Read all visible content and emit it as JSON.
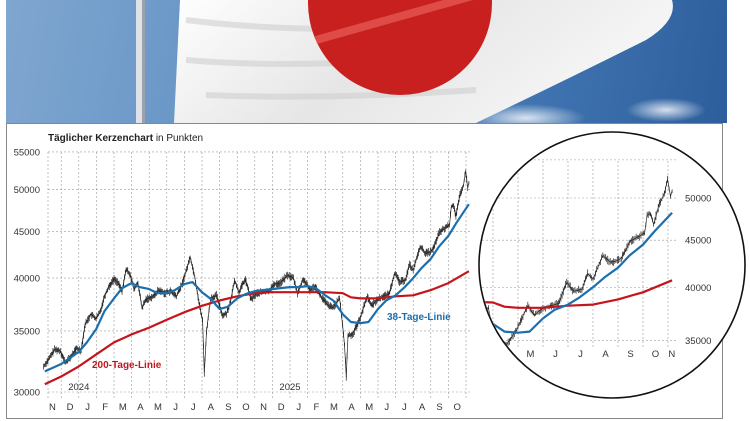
{
  "header_image": {
    "subject": "japan-flag-photo",
    "colors": {
      "sky": "#5f8fc4",
      "flag_white": "#f2f2f2",
      "flag_red": "#c8201e"
    }
  },
  "colors": {
    "candles": "#222222",
    "ma38": "#1b6fae",
    "ma200": "#c4151c",
    "grid": "#9a9a9a",
    "frame": "#888888"
  },
  "chart_data": [
    {
      "type": "line",
      "title_bold": "Täglicher Kerzenchart",
      "title_rest": " in Punkten",
      "y_scale": "log",
      "ylim": [
        30000,
        55000
      ],
      "y_ticks": [
        "55000",
        "50000",
        "45000",
        "40000",
        "35000",
        "30000"
      ],
      "x_range": [
        "2023-11-01",
        "2025-11-06"
      ],
      "x_ticks": [
        "N",
        "D",
        "J",
        "F",
        "M",
        "A",
        "M",
        "J",
        "J",
        "A",
        "S",
        "O",
        "N",
        "D",
        "J",
        "F",
        "M",
        "A",
        "M",
        "J",
        "J",
        "A",
        "S",
        "O"
      ],
      "year_labels": [
        {
          "label": "2024",
          "date": "2024-01-01"
        },
        {
          "label": "2025",
          "date": "2025-01-01"
        }
      ],
      "grid": true,
      "annotations": [
        {
          "text": "200-Tage-Linie",
          "series": "ma200"
        },
        {
          "text": "38-Tage-Linie",
          "series": "ma38"
        }
      ],
      "series": [
        {
          "id": "price",
          "style": "candlestick-approx",
          "points": [
            [
              "2023-11-01",
              32000
            ],
            [
              "2023-11-10",
              32600
            ],
            [
              "2023-11-20",
              33400
            ],
            [
              "2023-11-30",
              33300
            ],
            [
              "2023-12-08",
              32300
            ],
            [
              "2023-12-18",
              32800
            ],
            [
              "2023-12-28",
              33500
            ],
            [
              "2024-01-05",
              33300
            ],
            [
              "2024-01-12",
              35600
            ],
            [
              "2024-01-22",
              36500
            ],
            [
              "2024-01-31",
              36100
            ],
            [
              "2024-02-08",
              36800
            ],
            [
              "2024-02-15",
              38200
            ],
            [
              "2024-02-22",
              39100
            ],
            [
              "2024-03-01",
              39900
            ],
            [
              "2024-03-07",
              39600
            ],
            [
              "2024-03-15",
              38700
            ],
            [
              "2024-03-22",
              40900
            ],
            [
              "2024-03-29",
              40400
            ],
            [
              "2024-04-05",
              38900
            ],
            [
              "2024-04-12",
              39500
            ],
            [
              "2024-04-19",
              37100
            ],
            [
              "2024-04-26",
              37900
            ],
            [
              "2024-05-08",
              38200
            ],
            [
              "2024-05-17",
              38800
            ],
            [
              "2024-05-28",
              38500
            ],
            [
              "2024-06-07",
              38700
            ],
            [
              "2024-06-18",
              38200
            ],
            [
              "2024-06-28",
              39500
            ],
            [
              "2024-07-05",
              40900
            ],
            [
              "2024-07-11",
              42200
            ],
            [
              "2024-07-19",
              40100
            ],
            [
              "2024-07-26",
              37700
            ],
            [
              "2024-08-02",
              35900
            ],
            [
              "2024-08-05",
              31500
            ],
            [
              "2024-08-09",
              35000
            ],
            [
              "2024-08-16",
              38000
            ],
            [
              "2024-08-26",
              38300
            ],
            [
              "2024-09-06",
              36400
            ],
            [
              "2024-09-13",
              36600
            ],
            [
              "2024-09-20",
              37700
            ],
            [
              "2024-09-27",
              39800
            ],
            [
              "2024-10-04",
              38600
            ],
            [
              "2024-10-15",
              39900
            ],
            [
              "2024-10-25",
              37900
            ],
            [
              "2024-11-05",
              38500
            ],
            [
              "2024-11-15",
              38600
            ],
            [
              "2024-11-25",
              38700
            ],
            [
              "2024-12-05",
              39400
            ],
            [
              "2024-12-15",
              39500
            ],
            [
              "2024-12-27",
              40300
            ],
            [
              "2025-01-07",
              40000
            ],
            [
              "2025-01-14",
              38500
            ],
            [
              "2025-01-24",
              39900
            ],
            [
              "2025-02-05",
              38800
            ],
            [
              "2025-02-14",
              39200
            ],
            [
              "2025-02-25",
              38100
            ],
            [
              "2025-03-05",
              37400
            ],
            [
              "2025-03-14",
              37100
            ],
            [
              "2025-03-26",
              38000
            ],
            [
              "2025-03-31",
              35600
            ],
            [
              "2025-04-04",
              33800
            ],
            [
              "2025-04-07",
              31100
            ],
            [
              "2025-04-10",
              34600
            ],
            [
              "2025-04-18",
              34700
            ],
            [
              "2025-04-30",
              36000
            ],
            [
              "2025-05-13",
              38200
            ],
            [
              "2025-05-21",
              37300
            ],
            [
              "2025-05-30",
              37900
            ],
            [
              "2025-06-10",
              38200
            ],
            [
              "2025-06-20",
              38400
            ],
            [
              "2025-06-30",
              40500
            ],
            [
              "2025-07-08",
              39600
            ],
            [
              "2025-07-18",
              39800
            ],
            [
              "2025-07-25",
              41400
            ],
            [
              "2025-08-01",
              40800
            ],
            [
              "2025-08-13",
              43300
            ],
            [
              "2025-08-22",
              42600
            ],
            [
              "2025-08-29",
              42700
            ],
            [
              "2025-09-05",
              43000
            ],
            [
              "2025-09-16",
              44900
            ],
            [
              "2025-09-26",
              45400
            ],
            [
              "2025-10-03",
              45800
            ],
            [
              "2025-10-06",
              47900
            ],
            [
              "2025-10-10",
              48100
            ],
            [
              "2025-10-14",
              46800
            ],
            [
              "2025-10-21",
              49300
            ],
            [
              "2025-10-27",
              50500
            ],
            [
              "2025-10-31",
              52400
            ],
            [
              "2025-11-04",
              50200
            ],
            [
              "2025-11-06",
              50900
            ]
          ]
        },
        {
          "id": "ma38",
          "name": "38-Tage-Linie",
          "points": [
            [
              "2023-11-03",
              31600
            ],
            [
              "2023-12-01",
              32200
            ],
            [
              "2024-01-01",
              33200
            ],
            [
              "2024-01-15",
              34000
            ],
            [
              "2024-02-01",
              35200
            ],
            [
              "2024-02-15",
              36800
            ],
            [
              "2024-03-01",
              38000
            ],
            [
              "2024-03-15",
              39000
            ],
            [
              "2024-04-01",
              39500
            ],
            [
              "2024-04-15",
              39100
            ],
            [
              "2024-05-01",
              38900
            ],
            [
              "2024-05-15",
              38500
            ],
            [
              "2024-06-01",
              38500
            ],
            [
              "2024-06-15",
              38800
            ],
            [
              "2024-07-01",
              39400
            ],
            [
              "2024-07-15",
              39600
            ],
            [
              "2024-08-01",
              38600
            ],
            [
              "2024-08-15",
              38000
            ],
            [
              "2024-09-01",
              37000
            ],
            [
              "2024-09-15",
              37200
            ],
            [
              "2024-10-01",
              38000
            ],
            [
              "2024-10-15",
              38400
            ],
            [
              "2024-11-01",
              38700
            ],
            [
              "2024-11-15",
              38800
            ],
            [
              "2024-12-01",
              38900
            ],
            [
              "2024-12-15",
              39000
            ],
            [
              "2025-01-01",
              39100
            ],
            [
              "2025-01-15",
              39100
            ],
            [
              "2025-02-01",
              39200
            ],
            [
              "2025-02-15",
              39000
            ],
            [
              "2025-03-01",
              38300
            ],
            [
              "2025-03-15",
              37800
            ],
            [
              "2025-04-01",
              36500
            ],
            [
              "2025-04-15",
              35800
            ],
            [
              "2025-05-01",
              35700
            ],
            [
              "2025-05-15",
              35800
            ],
            [
              "2025-06-01",
              37000
            ],
            [
              "2025-06-15",
              37800
            ],
            [
              "2025-07-01",
              38300
            ],
            [
              "2025-07-15",
              39000
            ],
            [
              "2025-08-01",
              40000
            ],
            [
              "2025-08-15",
              41000
            ],
            [
              "2025-09-01",
              42000
            ],
            [
              "2025-09-15",
              43300
            ],
            [
              "2025-10-01",
              44500
            ],
            [
              "2025-10-15",
              46000
            ],
            [
              "2025-11-06",
              48200
            ]
          ]
        },
        {
          "id": "ma200",
          "name": "200-Tage-Linie",
          "points": [
            [
              "2023-11-03",
              30600
            ],
            [
              "2023-12-01",
              31200
            ],
            [
              "2024-01-01",
              32000
            ],
            [
              "2024-02-01",
              33000
            ],
            [
              "2024-03-01",
              34000
            ],
            [
              "2024-04-01",
              34700
            ],
            [
              "2024-05-01",
              35300
            ],
            [
              "2024-06-01",
              36000
            ],
            [
              "2024-07-01",
              36700
            ],
            [
              "2024-08-01",
              37300
            ],
            [
              "2024-09-01",
              37800
            ],
            [
              "2024-10-01",
              38200
            ],
            [
              "2024-11-01",
              38500
            ],
            [
              "2024-12-01",
              38600
            ],
            [
              "2025-01-01",
              38600
            ],
            [
              "2025-02-01",
              38600
            ],
            [
              "2025-03-01",
              38600
            ],
            [
              "2025-04-01",
              38500
            ],
            [
              "2025-04-15",
              38100
            ],
            [
              "2025-05-01",
              38000
            ],
            [
              "2025-06-01",
              38000
            ],
            [
              "2025-07-01",
              38200
            ],
            [
              "2025-08-01",
              38300
            ],
            [
              "2025-09-01",
              38800
            ],
            [
              "2025-10-01",
              39500
            ],
            [
              "2025-11-06",
              40700
            ]
          ]
        }
      ]
    },
    {
      "type": "line",
      "inset": "circular magnification",
      "y_scale": "log",
      "y_ticks": [
        "50000",
        "45000",
        "40000",
        "35000"
      ],
      "x_ticks": [
        "M",
        "J",
        "J",
        "A",
        "S",
        "O",
        "N"
      ],
      "x_range": [
        "2025-03-15",
        "2025-11-06"
      ],
      "grid": true
    }
  ]
}
